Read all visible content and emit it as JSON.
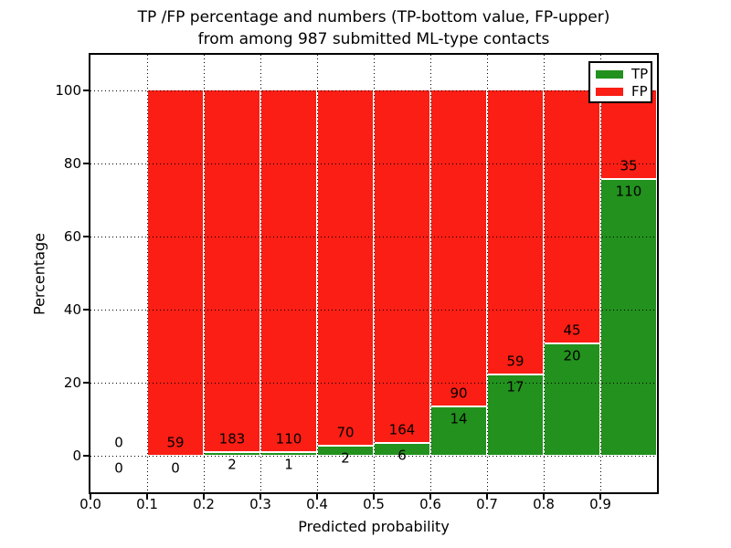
{
  "chart_data": {
    "type": "bar",
    "stacked": true,
    "title_line1": "TP /FP percentage and numbers (TP-bottom value, FP-upper)",
    "title_line2": "from among 987 submitted ML-type contacts",
    "xlabel": "Predicted probability",
    "ylabel": "Percentage",
    "xlim": [
      0.0,
      1.0
    ],
    "ylim": [
      -10,
      110
    ],
    "grid": true,
    "xticks": [
      "0.0",
      "0.1",
      "0.2",
      "0.3",
      "0.4",
      "0.5",
      "0.6",
      "0.7",
      "0.8",
      "0.9"
    ],
    "yticks": [
      0,
      20,
      40,
      60,
      80,
      100
    ],
    "tp_color": "#22911d",
    "fp_color": "#fa1e14",
    "legend": [
      {
        "label": "TP",
        "color": "#22911d"
      },
      {
        "label": "FP",
        "color": "#fa1e14"
      }
    ],
    "legend_position": "upper right",
    "bins": [
      {
        "range": [
          0.0,
          0.1
        ],
        "tp": 0,
        "fp": 0
      },
      {
        "range": [
          0.1,
          0.2
        ],
        "tp": 0,
        "fp": 59
      },
      {
        "range": [
          0.2,
          0.3
        ],
        "tp": 2,
        "fp": 183
      },
      {
        "range": [
          0.3,
          0.4
        ],
        "tp": 1,
        "fp": 110
      },
      {
        "range": [
          0.4,
          0.5
        ],
        "tp": 2,
        "fp": 70
      },
      {
        "range": [
          0.5,
          0.6
        ],
        "tp": 6,
        "fp": 164
      },
      {
        "range": [
          0.6,
          0.7
        ],
        "tp": 14,
        "fp": 90
      },
      {
        "range": [
          0.7,
          0.8
        ],
        "tp": 17,
        "fp": 59
      },
      {
        "range": [
          0.8,
          0.9
        ],
        "tp": 20,
        "fp": 45
      },
      {
        "range": [
          0.9,
          1.0
        ],
        "tp": 110,
        "fp": 35
      }
    ]
  }
}
